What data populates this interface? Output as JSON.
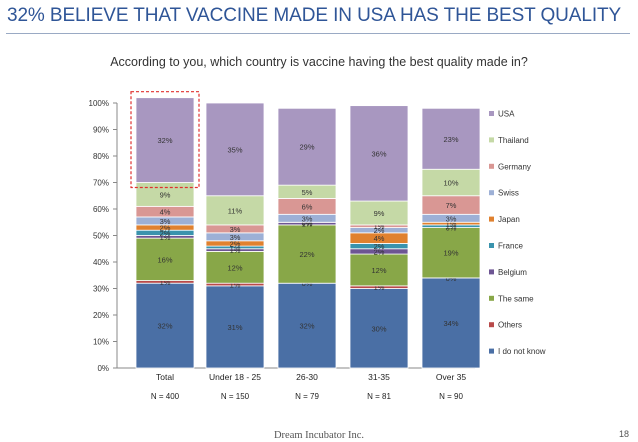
{
  "header": {
    "title": "32% BELIEVE THAT VACCINE MADE IN USA HAS THE BEST QUALITY"
  },
  "footer": {
    "company": "Dream Incubator Inc.",
    "page_number": "18"
  },
  "colors": {
    "title": "#2f5597",
    "highlight_box": "#e0302f"
  },
  "chart_data": {
    "type": "bar",
    "stacked": true,
    "title": "According to you, which country is vaccine having the best quality made in?",
    "categories": [
      "Total",
      "Under 18 - 25",
      "26-30",
      "31-35",
      "Over 35"
    ],
    "sample_sizes": [
      "N = 400",
      "N = 150",
      "N = 79",
      "N = 81",
      "N = 90"
    ],
    "ylim": [
      0,
      100
    ],
    "yticks": [
      "0%",
      "10%",
      "20%",
      "30%",
      "40%",
      "50%",
      "60%",
      "70%",
      "80%",
      "90%",
      "100%"
    ],
    "legend_position": "right",
    "highlight": {
      "category": "Total",
      "series": "USA"
    },
    "series": [
      {
        "name": "I do not know",
        "color": "#4a6fa5",
        "values": [
          32,
          31,
          32,
          30,
          34
        ],
        "labels": [
          "32%",
          "31%",
          "32%",
          "30%",
          "34%"
        ]
      },
      {
        "name": "Others",
        "color": "#b84a4a",
        "values": [
          1,
          1,
          0,
          1,
          0
        ],
        "labels": [
          "1%",
          "1%",
          "0%",
          "1%",
          "0%"
        ]
      },
      {
        "name": "The same",
        "color": "#88a748",
        "values": [
          16,
          12,
          22,
          12,
          19
        ],
        "labels": [
          "16%",
          "12%",
          "22%",
          "12%",
          "19%"
        ]
      },
      {
        "name": "Belgium",
        "color": "#6d5593",
        "values": [
          1,
          1,
          1,
          2,
          0
        ],
        "labels": [
          "1%",
          "1%",
          "1%",
          "2%",
          "0%"
        ]
      },
      {
        "name": "France",
        "color": "#3a93ad",
        "values": [
          2,
          1,
          0,
          2,
          1
        ],
        "labels": [
          "2%",
          "1%",
          "0%",
          "2%",
          "1%"
        ]
      },
      {
        "name": "Japan",
        "color": "#e0812f",
        "values": [
          2,
          2,
          0,
          4,
          1
        ],
        "labels": [
          "2%",
          "2%",
          "0%",
          "4%",
          "1%"
        ]
      },
      {
        "name": "Swiss",
        "color": "#9db0d6",
        "values": [
          3,
          3,
          3,
          2,
          3
        ],
        "labels": [
          "3%",
          "3%",
          "3%",
          "2%",
          "3%"
        ]
      },
      {
        "name": "Germany",
        "color": "#d99794",
        "values": [
          4,
          3,
          6,
          1,
          7
        ],
        "labels": [
          "4%",
          "3%",
          "6%",
          "1%",
          "7%"
        ]
      },
      {
        "name": "Thailand",
        "color": "#c5d9a6",
        "values": [
          9,
          11,
          5,
          9,
          10
        ],
        "labels": [
          "9%",
          "11%",
          "5%",
          "9%",
          "10%"
        ]
      },
      {
        "name": "USA",
        "color": "#a897c0",
        "values": [
          32,
          35,
          29,
          36,
          23
        ],
        "labels": [
          "32%",
          "35%",
          "29%",
          "36%",
          "23%"
        ]
      }
    ]
  }
}
